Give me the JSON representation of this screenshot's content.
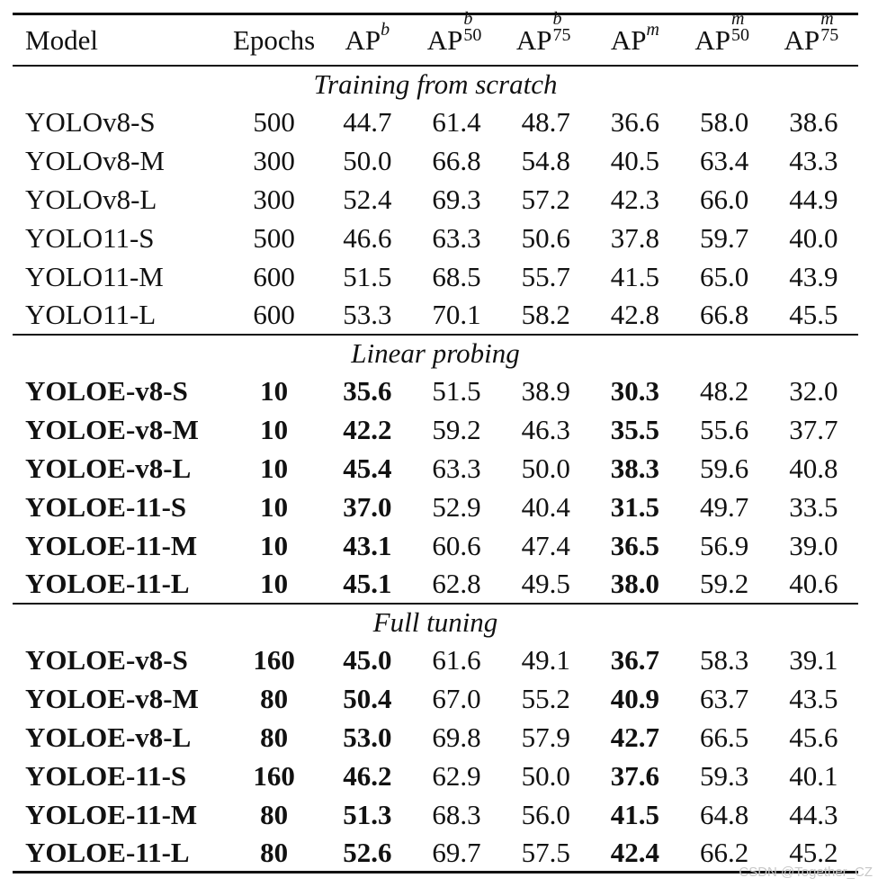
{
  "table": {
    "headers": {
      "model": "Model",
      "epochs": "Epochs",
      "ap_b": "AP",
      "ap_b_sup": "b",
      "ap_b50": "AP",
      "ap_b50_sup": "b",
      "ap_b50_sub": "50",
      "ap_b75": "AP",
      "ap_b75_sup": "b",
      "ap_b75_sub": "75",
      "ap_m": "AP",
      "ap_m_sup": "m",
      "ap_m50": "AP",
      "ap_m50_sup": "m",
      "ap_m50_sub": "50",
      "ap_m75": "AP",
      "ap_m75_sup": "m",
      "ap_m75_sub": "75"
    },
    "sections": [
      {
        "title": "Training from scratch",
        "bold_rows": false,
        "rows": [
          {
            "model": "YOLOv8-S",
            "epochs": "500",
            "ap_b": "44.7",
            "ap_b50": "61.4",
            "ap_b75": "48.7",
            "ap_m": "36.6",
            "ap_m50": "58.0",
            "ap_m75": "38.6"
          },
          {
            "model": "YOLOv8-M",
            "epochs": "300",
            "ap_b": "50.0",
            "ap_b50": "66.8",
            "ap_b75": "54.8",
            "ap_m": "40.5",
            "ap_m50": "63.4",
            "ap_m75": "43.3"
          },
          {
            "model": "YOLOv8-L",
            "epochs": "300",
            "ap_b": "52.4",
            "ap_b50": "69.3",
            "ap_b75": "57.2",
            "ap_m": "42.3",
            "ap_m50": "66.0",
            "ap_m75": "44.9"
          },
          {
            "model": "YOLO11-S",
            "epochs": "500",
            "ap_b": "46.6",
            "ap_b50": "63.3",
            "ap_b75": "50.6",
            "ap_m": "37.8",
            "ap_m50": "59.7",
            "ap_m75": "40.0"
          },
          {
            "model": "YOLO11-M",
            "epochs": "600",
            "ap_b": "51.5",
            "ap_b50": "68.5",
            "ap_b75": "55.7",
            "ap_m": "41.5",
            "ap_m50": "65.0",
            "ap_m75": "43.9"
          },
          {
            "model": "YOLO11-L",
            "epochs": "600",
            "ap_b": "53.3",
            "ap_b50": "70.1",
            "ap_b75": "58.2",
            "ap_m": "42.8",
            "ap_m50": "66.8",
            "ap_m75": "45.5"
          }
        ]
      },
      {
        "title": "Linear probing",
        "bold_rows": true,
        "rows": [
          {
            "model": "YOLOE-v8-S",
            "epochs": "10",
            "ap_b": "35.6",
            "ap_b50": "51.5",
            "ap_b75": "38.9",
            "ap_m": "30.3",
            "ap_m50": "48.2",
            "ap_m75": "32.0"
          },
          {
            "model": "YOLOE-v8-M",
            "epochs": "10",
            "ap_b": "42.2",
            "ap_b50": "59.2",
            "ap_b75": "46.3",
            "ap_m": "35.5",
            "ap_m50": "55.6",
            "ap_m75": "37.7"
          },
          {
            "model": "YOLOE-v8-L",
            "epochs": "10",
            "ap_b": "45.4",
            "ap_b50": "63.3",
            "ap_b75": "50.0",
            "ap_m": "38.3",
            "ap_m50": "59.6",
            "ap_m75": "40.8"
          },
          {
            "model": "YOLOE-11-S",
            "epochs": "10",
            "ap_b": "37.0",
            "ap_b50": "52.9",
            "ap_b75": "40.4",
            "ap_m": "31.5",
            "ap_m50": "49.7",
            "ap_m75": "33.5"
          },
          {
            "model": "YOLOE-11-M",
            "epochs": "10",
            "ap_b": "43.1",
            "ap_b50": "60.6",
            "ap_b75": "47.4",
            "ap_m": "36.5",
            "ap_m50": "56.9",
            "ap_m75": "39.0"
          },
          {
            "model": "YOLOE-11-L",
            "epochs": "10",
            "ap_b": "45.1",
            "ap_b50": "62.8",
            "ap_b75": "49.5",
            "ap_m": "38.0",
            "ap_m50": "59.2",
            "ap_m75": "40.6"
          }
        ]
      },
      {
        "title": "Full tuning",
        "bold_rows": true,
        "rows": [
          {
            "model": "YOLOE-v8-S",
            "epochs": "160",
            "ap_b": "45.0",
            "ap_b50": "61.6",
            "ap_b75": "49.1",
            "ap_m": "36.7",
            "ap_m50": "58.3",
            "ap_m75": "39.1"
          },
          {
            "model": "YOLOE-v8-M",
            "epochs": "80",
            "ap_b": "50.4",
            "ap_b50": "67.0",
            "ap_b75": "55.2",
            "ap_m": "40.9",
            "ap_m50": "63.7",
            "ap_m75": "43.5"
          },
          {
            "model": "YOLOE-v8-L",
            "epochs": "80",
            "ap_b": "53.0",
            "ap_b50": "69.8",
            "ap_b75": "57.9",
            "ap_m": "42.7",
            "ap_m50": "66.5",
            "ap_m75": "45.6"
          },
          {
            "model": "YOLOE-11-S",
            "epochs": "160",
            "ap_b": "46.2",
            "ap_b50": "62.9",
            "ap_b75": "50.0",
            "ap_m": "37.6",
            "ap_m50": "59.3",
            "ap_m75": "40.1"
          },
          {
            "model": "YOLOE-11-M",
            "epochs": "80",
            "ap_b": "51.3",
            "ap_b50": "68.3",
            "ap_b75": "56.0",
            "ap_m": "41.5",
            "ap_m50": "64.8",
            "ap_m75": "44.3"
          },
          {
            "model": "YOLOE-11-L",
            "epochs": "80",
            "ap_b": "52.6",
            "ap_b50": "69.7",
            "ap_b75": "57.5",
            "ap_m": "42.4",
            "ap_m50": "66.2",
            "ap_m75": "45.2"
          }
        ]
      }
    ]
  },
  "watermark": "CSDN @Together_CZ"
}
